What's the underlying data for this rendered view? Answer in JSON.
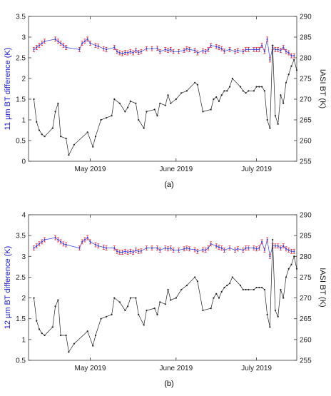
{
  "chart_data": [
    {
      "type": "line",
      "caption": "(a)",
      "ylabel_left": "11 µm BT difference (K)",
      "ylabel_right": "IASI BT (K)",
      "x_ticks": [
        {
          "label": "May 2019",
          "day": 23
        },
        {
          "label": "June 2019",
          "day": 55
        },
        {
          "label": "July 2019",
          "day": 85
        }
      ],
      "xlim": [
        0,
        100
      ],
      "ylim_left": [
        0,
        3.5
      ],
      "yticks_left": [
        "0",
        "0.5",
        "1",
        "1.5",
        "2",
        "2.5",
        "3",
        "3.5"
      ],
      "ylim_right": [
        255,
        290
      ],
      "yticks_right": [
        "255",
        "260",
        "265",
        "270",
        "275",
        "280",
        "285",
        "290"
      ],
      "colors": {
        "diff": "#3b3bd9",
        "errorbar": "#e0304a",
        "iasi": "#222222",
        "left_axis": "#1a1acc"
      },
      "series": [
        {
          "axis": "left",
          "x": [
            2,
            3,
            4,
            5,
            6,
            10,
            11,
            12,
            13,
            14,
            19,
            20,
            21,
            22,
            23,
            25,
            26,
            28,
            29,
            32,
            33,
            34,
            35,
            36,
            37,
            38,
            39,
            40,
            41,
            42,
            44,
            46,
            48,
            49,
            51,
            52,
            53,
            54,
            56,
            58,
            59,
            60,
            62,
            63,
            65,
            66,
            67,
            68,
            70,
            71,
            72,
            73,
            75,
            77,
            78,
            80,
            81,
            82,
            84,
            85,
            86,
            87,
            88,
            89,
            90,
            91,
            92,
            93,
            94,
            95,
            96,
            97,
            98,
            99
          ],
          "y": [
            2.7,
            2.75,
            2.8,
            2.85,
            2.9,
            2.95,
            2.9,
            2.85,
            2.8,
            2.75,
            2.7,
            2.85,
            2.9,
            2.95,
            2.85,
            2.8,
            2.78,
            2.72,
            2.7,
            2.75,
            2.65,
            2.62,
            2.6,
            2.63,
            2.62,
            2.65,
            2.62,
            2.68,
            2.63,
            2.65,
            2.72,
            2.72,
            2.73,
            2.65,
            2.7,
            2.68,
            2.7,
            2.65,
            2.65,
            2.68,
            2.72,
            2.7,
            2.68,
            2.62,
            2.67,
            2.65,
            2.7,
            2.8,
            2.77,
            2.75,
            2.72,
            2.66,
            2.7,
            2.65,
            2.68,
            2.65,
            2.7,
            2.7,
            2.7,
            2.7,
            2.7,
            2.8,
            2.65,
            2.95,
            2.45,
            2.75,
            2.7,
            2.7,
            2.68,
            2.75,
            2.65,
            2.62,
            2.55,
            2.55
          ]
        },
        {
          "axis": "right",
          "x": [
            2,
            3,
            4,
            5,
            6,
            9,
            10,
            11,
            12,
            14,
            15,
            17,
            22,
            24,
            25,
            27,
            29,
            31,
            32,
            34,
            36,
            37,
            38,
            40,
            41,
            43,
            44,
            47,
            48,
            49,
            51,
            52,
            53,
            55,
            57,
            59,
            62,
            63,
            65,
            68,
            69,
            70,
            71,
            72,
            73,
            74,
            75,
            76,
            79,
            80,
            81,
            82,
            84,
            85,
            86,
            87,
            88,
            89,
            90,
            91,
            92,
            93,
            94,
            95,
            96,
            97,
            98,
            99,
            100
          ],
          "y": [
            270,
            264.5,
            262.5,
            261.5,
            261,
            263,
            267,
            269,
            261,
            260.5,
            256.5,
            259,
            262,
            258.5,
            261,
            265,
            265.5,
            266,
            270,
            269,
            267,
            268,
            269.5,
            269,
            265,
            263,
            267,
            267.5,
            266,
            269,
            268.5,
            271,
            269,
            270,
            271.5,
            272,
            274,
            273.5,
            267,
            267.5,
            270,
            270.5,
            269.5,
            271,
            272,
            272,
            273,
            275,
            273,
            272,
            271.5,
            272,
            272,
            273,
            273,
            273,
            272,
            265,
            263,
            283,
            266,
            264,
            271,
            269,
            274,
            276,
            278,
            279.5,
            277
          ]
        }
      ]
    },
    {
      "type": "line",
      "caption": "(b)",
      "ylabel_left": "12 µm BT difference (K)",
      "ylabel_right": "IASI BT (K)",
      "x_ticks": [
        {
          "label": "May 2019",
          "day": 23
        },
        {
          "label": "June 2019",
          "day": 55
        },
        {
          "label": "July 2019",
          "day": 85
        }
      ],
      "xlim": [
        0,
        100
      ],
      "ylim_left": [
        0.5,
        4
      ],
      "yticks_left": [
        "0.5",
        "1",
        "1.5",
        "2",
        "2.5",
        "3",
        "3.5",
        "4"
      ],
      "ylim_right": [
        255,
        290
      ],
      "yticks_right": [
        "255",
        "260",
        "265",
        "270",
        "275",
        "280",
        "285",
        "290"
      ],
      "colors": {
        "diff": "#3b3bd9",
        "errorbar": "#e0304a",
        "iasi": "#222222",
        "left_axis": "#1a1acc"
      },
      "series": [
        {
          "axis": "left",
          "x": [
            2,
            3,
            4,
            5,
            6,
            10,
            11,
            12,
            13,
            14,
            19,
            20,
            21,
            22,
            23,
            25,
            26,
            28,
            29,
            32,
            33,
            34,
            35,
            36,
            37,
            38,
            39,
            40,
            41,
            42,
            44,
            46,
            48,
            49,
            51,
            52,
            53,
            54,
            56,
            58,
            59,
            60,
            62,
            63,
            65,
            66,
            67,
            68,
            70,
            71,
            72,
            73,
            75,
            77,
            78,
            80,
            81,
            82,
            84,
            85,
            86,
            87,
            88,
            89,
            90,
            91,
            92,
            93,
            94,
            95,
            96,
            97,
            98,
            99
          ],
          "y": [
            3.2,
            3.25,
            3.3,
            3.35,
            3.4,
            3.45,
            3.4,
            3.35,
            3.3,
            3.28,
            3.2,
            3.35,
            3.4,
            3.45,
            3.35,
            3.28,
            3.25,
            3.22,
            3.2,
            3.2,
            3.12,
            3.1,
            3.1,
            3.12,
            3.1,
            3.12,
            3.1,
            3.15,
            3.12,
            3.13,
            3.2,
            3.2,
            3.2,
            3.15,
            3.2,
            3.18,
            3.2,
            3.15,
            3.15,
            3.18,
            3.2,
            3.18,
            3.16,
            3.12,
            3.16,
            3.15,
            3.2,
            3.3,
            3.25,
            3.22,
            3.2,
            3.15,
            3.2,
            3.15,
            3.18,
            3.15,
            3.2,
            3.2,
            3.2,
            3.18,
            3.2,
            3.35,
            3.15,
            3.4,
            3.0,
            3.25,
            3.25,
            3.25,
            3.2,
            3.25,
            3.18,
            3.15,
            3.12,
            3.12
          ]
        },
        {
          "axis": "right",
          "x": [
            2,
            3,
            4,
            5,
            6,
            9,
            10,
            11,
            12,
            14,
            15,
            17,
            22,
            24,
            25,
            27,
            29,
            31,
            32,
            34,
            36,
            37,
            38,
            40,
            41,
            43,
            44,
            47,
            48,
            49,
            51,
            52,
            53,
            55,
            57,
            59,
            62,
            63,
            65,
            68,
            69,
            70,
            71,
            72,
            73,
            74,
            75,
            76,
            79,
            80,
            81,
            82,
            84,
            85,
            86,
            87,
            88,
            89,
            90,
            91,
            92,
            93,
            94,
            95,
            96,
            97,
            98,
            99,
            100
          ],
          "y": [
            270,
            264.5,
            262.5,
            261.5,
            261,
            263,
            268,
            269.5,
            261,
            261,
            257,
            259,
            262,
            258.5,
            261,
            265,
            265.5,
            266,
            270,
            269,
            267,
            268,
            270,
            270,
            266,
            263.5,
            267,
            267.5,
            266,
            269,
            268.5,
            272,
            269.5,
            270,
            272,
            273,
            275,
            274,
            267,
            267.5,
            270,
            271,
            270,
            271.5,
            272.5,
            273,
            273.5,
            275,
            273,
            272,
            272,
            272,
            272,
            272.5,
            272.5,
            272.5,
            272,
            266,
            263,
            284,
            267,
            265.5,
            272,
            270,
            275,
            277,
            278,
            280,
            277
          ]
        }
      ]
    }
  ]
}
